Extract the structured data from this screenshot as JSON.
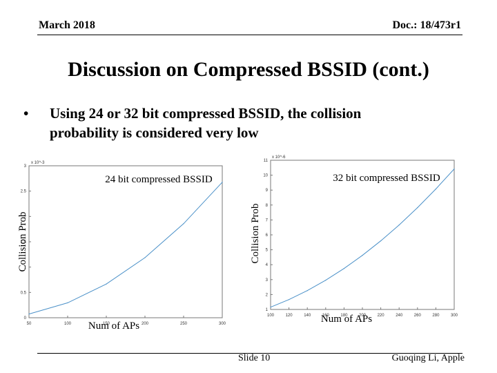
{
  "header": {
    "date": "March 2018",
    "doc": "Doc.: 18/473r1"
  },
  "title": "Discussion on Compressed BSSID (cont.)",
  "bullet": {
    "line1": "Using 24 or 32 bit compressed BSSID, the collision",
    "line2": "probability is considered very low"
  },
  "footer": {
    "slide": "Slide 10",
    "author": "Guoqing Li, Apple"
  },
  "colors": {
    "curve": "#4a90c8",
    "axis": "#777777"
  },
  "chart_data": [
    {
      "type": "line",
      "title": "24 bit compressed BSSID",
      "xlabel": "Num of APs",
      "ylabel": "Collision Prob",
      "exponent": "x 10^-3",
      "xlim": [
        50,
        300
      ],
      "ylim": [
        0,
        3
      ],
      "xticks": [
        "50",
        "100",
        "150",
        "200",
        "250",
        "300"
      ],
      "yticks": [
        "0",
        "0.5",
        "1",
        "1.5",
        "2",
        "2.5",
        "3"
      ],
      "x": [
        50,
        100,
        150,
        200,
        250,
        300
      ],
      "values": [
        0.073,
        0.295,
        0.665,
        1.186,
        1.857,
        2.676
      ]
    },
    {
      "type": "line",
      "title": "32 bit compressed BSSID",
      "xlabel": "Num of APs",
      "ylabel": "Collision Prob",
      "exponent": "x 10^-6",
      "xlim": [
        100,
        300
      ],
      "ylim": [
        1,
        11
      ],
      "xticks": [
        "100",
        "120",
        "140",
        "160",
        "180",
        "200",
        "220",
        "240",
        "260",
        "280",
        "300"
      ],
      "yticks": [
        "1",
        "2",
        "3",
        "4",
        "5",
        "6",
        "7",
        "8",
        "9",
        "10",
        "11"
      ],
      "x": [
        100,
        120,
        140,
        160,
        180,
        200,
        220,
        240,
        260,
        280,
        300
      ],
      "values": [
        1.153,
        1.662,
        2.263,
        2.957,
        3.745,
        4.625,
        5.598,
        6.664,
        7.822,
        9.074,
        10.418
      ]
    }
  ]
}
